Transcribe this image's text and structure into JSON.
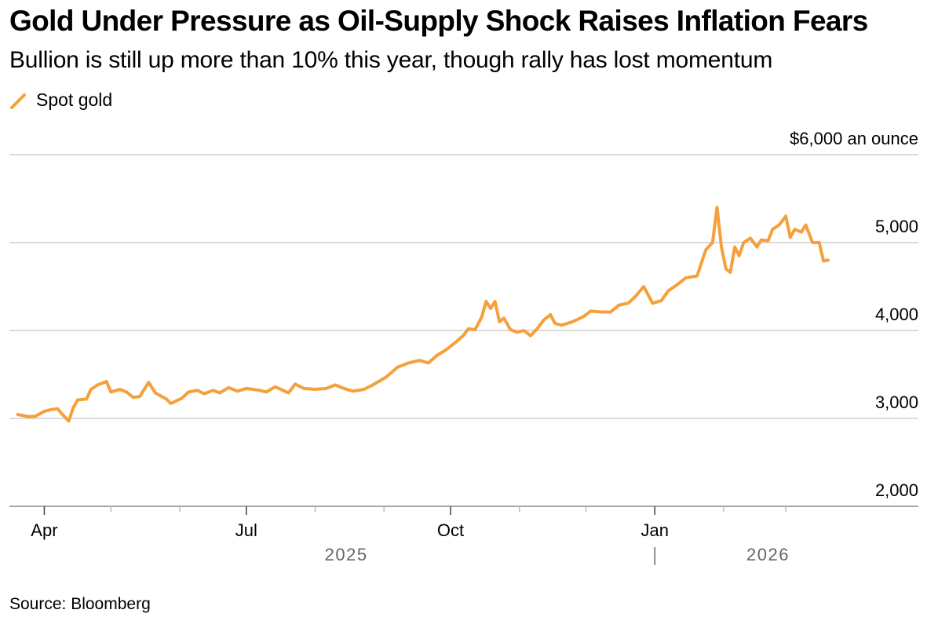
{
  "header": {
    "title": "Gold Under Pressure as Oil-Supply Shock Raises Inflation Fears",
    "subtitle": "Bullion is still up more than 10% this year, though rally has lost momentum"
  },
  "legend": {
    "label": "Spot gold",
    "color": "#f5a03a"
  },
  "footer": {
    "source": "Source: Bloomberg"
  },
  "chart_data": {
    "type": "line",
    "title": "Gold Under Pressure as Oil-Supply Shock Raises Inflation Fears",
    "subtitle": "Bullion is still up more than 10% this year, though rally has lost momentum",
    "ylabel": "$6,000 an ounce",
    "ylim": [
      2000,
      6000
    ],
    "yticks": [
      2000,
      3000,
      4000,
      5000,
      6000
    ],
    "ytick_labels": [
      "2,000",
      "3,000",
      "4,000",
      "5,000",
      "$6,000 an ounce"
    ],
    "xlim": [
      "2025-03-17",
      "2026-03-31"
    ],
    "xtick_labels": [
      {
        "date": "2025-04-01",
        "label": "Apr"
      },
      {
        "date": "2025-07-01",
        "label": "Jul"
      },
      {
        "date": "2025-10-01",
        "label": "Oct"
      },
      {
        "date": "2026-01-01",
        "label": "Jan"
      }
    ],
    "year_labels": [
      {
        "date": "2025-08-15",
        "label": "2025"
      },
      {
        "date": "2026-02-21",
        "label": "2026"
      }
    ],
    "grid": true,
    "legend_position": "top-left",
    "series": [
      {
        "name": "Spot gold",
        "color": "#f5a03a",
        "points": [
          [
            "2025-03-20",
            3045
          ],
          [
            "2025-03-25",
            3020
          ],
          [
            "2025-03-28",
            3025
          ],
          [
            "2025-04-01",
            3080
          ],
          [
            "2025-04-04",
            3100
          ],
          [
            "2025-04-07",
            3110
          ],
          [
            "2025-04-09",
            3050
          ],
          [
            "2025-04-12",
            2970
          ],
          [
            "2025-04-14",
            3120
          ],
          [
            "2025-04-16",
            3210
          ],
          [
            "2025-04-20",
            3220
          ],
          [
            "2025-04-22",
            3330
          ],
          [
            "2025-04-25",
            3380
          ],
          [
            "2025-04-29",
            3420
          ],
          [
            "2025-05-01",
            3300
          ],
          [
            "2025-05-05",
            3330
          ],
          [
            "2025-05-08",
            3300
          ],
          [
            "2025-05-11",
            3240
          ],
          [
            "2025-05-14",
            3250
          ],
          [
            "2025-05-18",
            3410
          ],
          [
            "2025-05-21",
            3290
          ],
          [
            "2025-05-26",
            3220
          ],
          [
            "2025-05-28",
            3170
          ],
          [
            "2025-06-02",
            3230
          ],
          [
            "2025-06-05",
            3300
          ],
          [
            "2025-06-09",
            3320
          ],
          [
            "2025-06-12",
            3280
          ],
          [
            "2025-06-16",
            3320
          ],
          [
            "2025-06-19",
            3290
          ],
          [
            "2025-06-23",
            3350
          ],
          [
            "2025-06-27",
            3310
          ],
          [
            "2025-07-01",
            3340
          ],
          [
            "2025-07-07",
            3320
          ],
          [
            "2025-07-10",
            3300
          ],
          [
            "2025-07-14",
            3360
          ],
          [
            "2025-07-20",
            3290
          ],
          [
            "2025-07-23",
            3390
          ],
          [
            "2025-07-27",
            3340
          ],
          [
            "2025-08-01",
            3330
          ],
          [
            "2025-08-06",
            3340
          ],
          [
            "2025-08-10",
            3380
          ],
          [
            "2025-08-14",
            3340
          ],
          [
            "2025-08-18",
            3310
          ],
          [
            "2025-08-23",
            3330
          ],
          [
            "2025-08-27",
            3380
          ],
          [
            "2025-09-02",
            3470
          ],
          [
            "2025-09-07",
            3580
          ],
          [
            "2025-09-12",
            3630
          ],
          [
            "2025-09-17",
            3660
          ],
          [
            "2025-09-21",
            3630
          ],
          [
            "2025-09-25",
            3720
          ],
          [
            "2025-09-29",
            3780
          ],
          [
            "2025-10-03",
            3860
          ],
          [
            "2025-10-07",
            3950
          ],
          [
            "2025-10-09",
            4020
          ],
          [
            "2025-10-12",
            4010
          ],
          [
            "2025-10-15",
            4150
          ],
          [
            "2025-10-17",
            4330
          ],
          [
            "2025-10-19",
            4250
          ],
          [
            "2025-10-21",
            4330
          ],
          [
            "2025-10-23",
            4100
          ],
          [
            "2025-10-25",
            4140
          ],
          [
            "2025-10-28",
            4010
          ],
          [
            "2025-10-31",
            3980
          ],
          [
            "2025-11-03",
            4000
          ],
          [
            "2025-11-06",
            3940
          ],
          [
            "2025-11-09",
            4020
          ],
          [
            "2025-11-12",
            4120
          ],
          [
            "2025-11-15",
            4180
          ],
          [
            "2025-11-17",
            4080
          ],
          [
            "2025-11-20",
            4060
          ],
          [
            "2025-11-25",
            4100
          ],
          [
            "2025-11-30",
            4160
          ],
          [
            "2025-12-03",
            4220
          ],
          [
            "2025-12-08",
            4210
          ],
          [
            "2025-12-12",
            4210
          ],
          [
            "2025-12-16",
            4290
          ],
          [
            "2025-12-20",
            4310
          ],
          [
            "2025-12-23",
            4380
          ],
          [
            "2025-12-27",
            4500
          ],
          [
            "2025-12-31",
            4310
          ],
          [
            "2026-01-04",
            4340
          ],
          [
            "2026-01-07",
            4450
          ],
          [
            "2026-01-11",
            4520
          ],
          [
            "2026-01-15",
            4600
          ],
          [
            "2026-01-20",
            4620
          ],
          [
            "2026-01-24",
            4920
          ],
          [
            "2026-01-27",
            5000
          ],
          [
            "2026-01-29",
            5400
          ],
          [
            "2026-01-31",
            4950
          ],
          [
            "2026-02-02",
            4700
          ],
          [
            "2026-02-04",
            4660
          ],
          [
            "2026-02-06",
            4950
          ],
          [
            "2026-02-08",
            4850
          ],
          [
            "2026-02-10",
            5000
          ],
          [
            "2026-02-13",
            5050
          ],
          [
            "2026-02-16",
            4950
          ],
          [
            "2026-02-18",
            5030
          ],
          [
            "2026-02-21",
            5020
          ],
          [
            "2026-02-23",
            5150
          ],
          [
            "2026-02-26",
            5200
          ],
          [
            "2026-03-01",
            5300
          ],
          [
            "2026-03-03",
            5060
          ],
          [
            "2026-03-05",
            5150
          ],
          [
            "2026-03-08",
            5120
          ],
          [
            "2026-03-10",
            5200
          ],
          [
            "2026-03-13",
            5000
          ],
          [
            "2026-03-16",
            5000
          ],
          [
            "2026-03-18",
            4790
          ],
          [
            "2026-03-20",
            4800
          ]
        ]
      }
    ]
  }
}
